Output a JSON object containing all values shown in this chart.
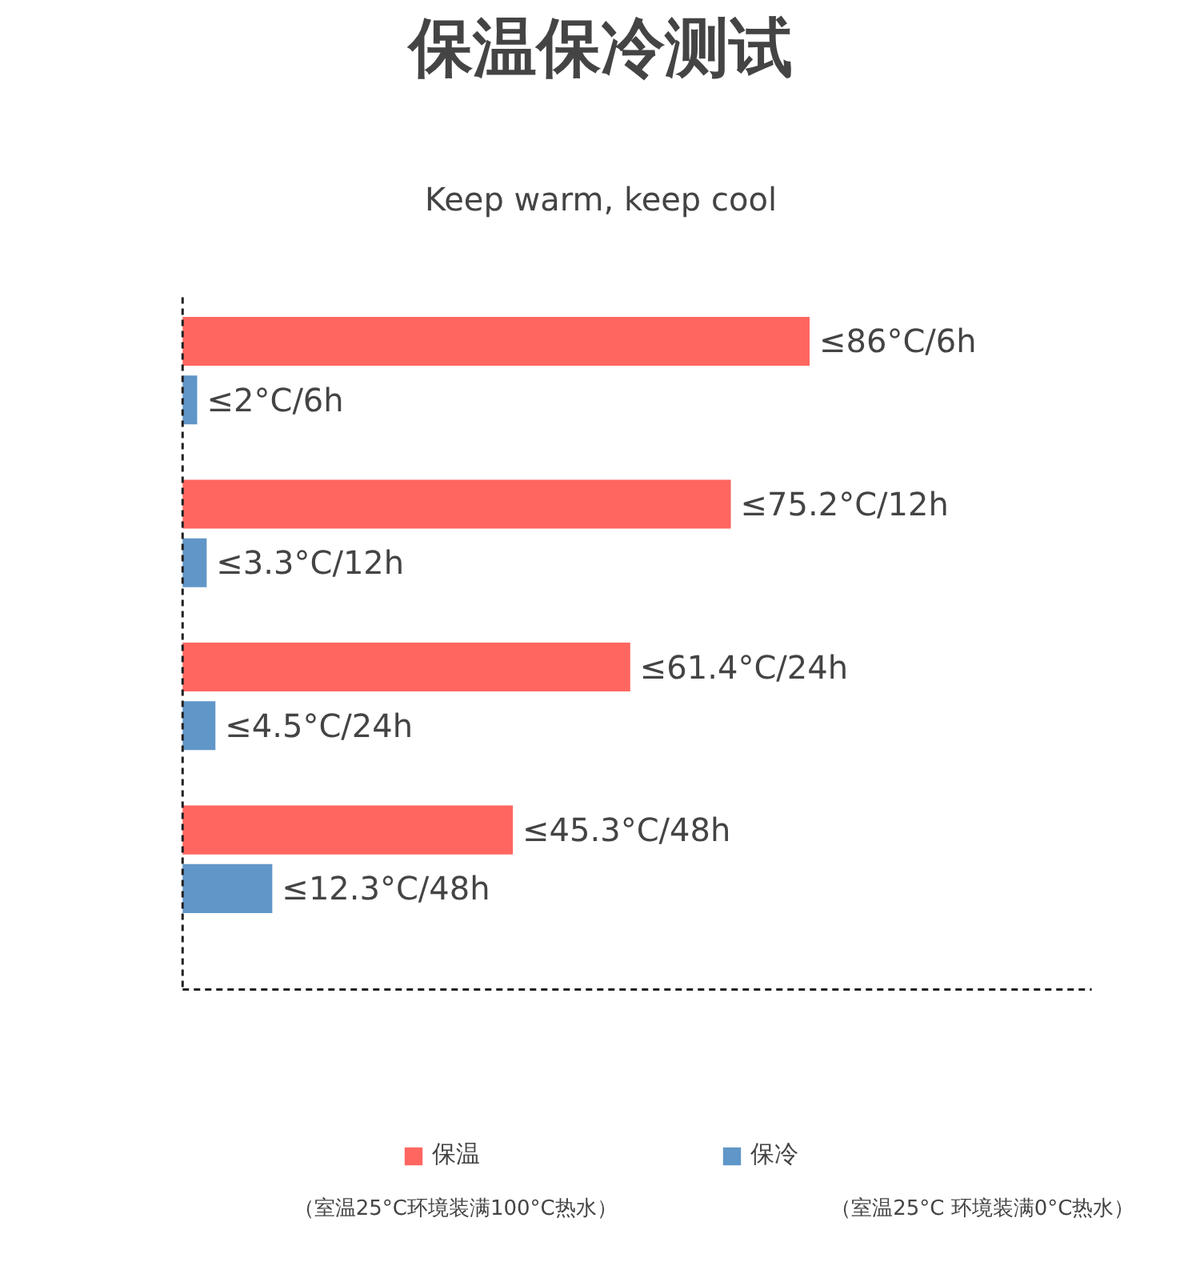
{
  "chart_data": {
    "type": "bar",
    "orientation": "horizontal",
    "title": "保温保冷测试",
    "subtitle": "Keep warm, keep cool",
    "categories": [
      null,
      null,
      null,
      null
    ],
    "series": [
      {
        "name": "保温",
        "color": "#ff6660",
        "values": [
          86,
          75.2,
          61.4,
          45.3
        ],
        "value_labels": [
          "≤86°C/6h",
          "≤75.2°C/12h",
          "≤61.4°C/24h",
          "≤45.3°C/48h"
        ]
      },
      {
        "name": "保冷",
        "color": "#6096c8",
        "values": [
          2,
          3.3,
          4.5,
          12.3
        ],
        "value_labels": [
          "≤2°C/6h",
          "≤3.3°C/12h",
          "≤4.5°C/24h",
          "≤12.3°C/48h"
        ]
      }
    ],
    "legend": "bottom",
    "annotations": [
      "（室温25°C环境装满100°C热水）",
      "（室温25°C 环境装满0°C热水）"
    ]
  }
}
